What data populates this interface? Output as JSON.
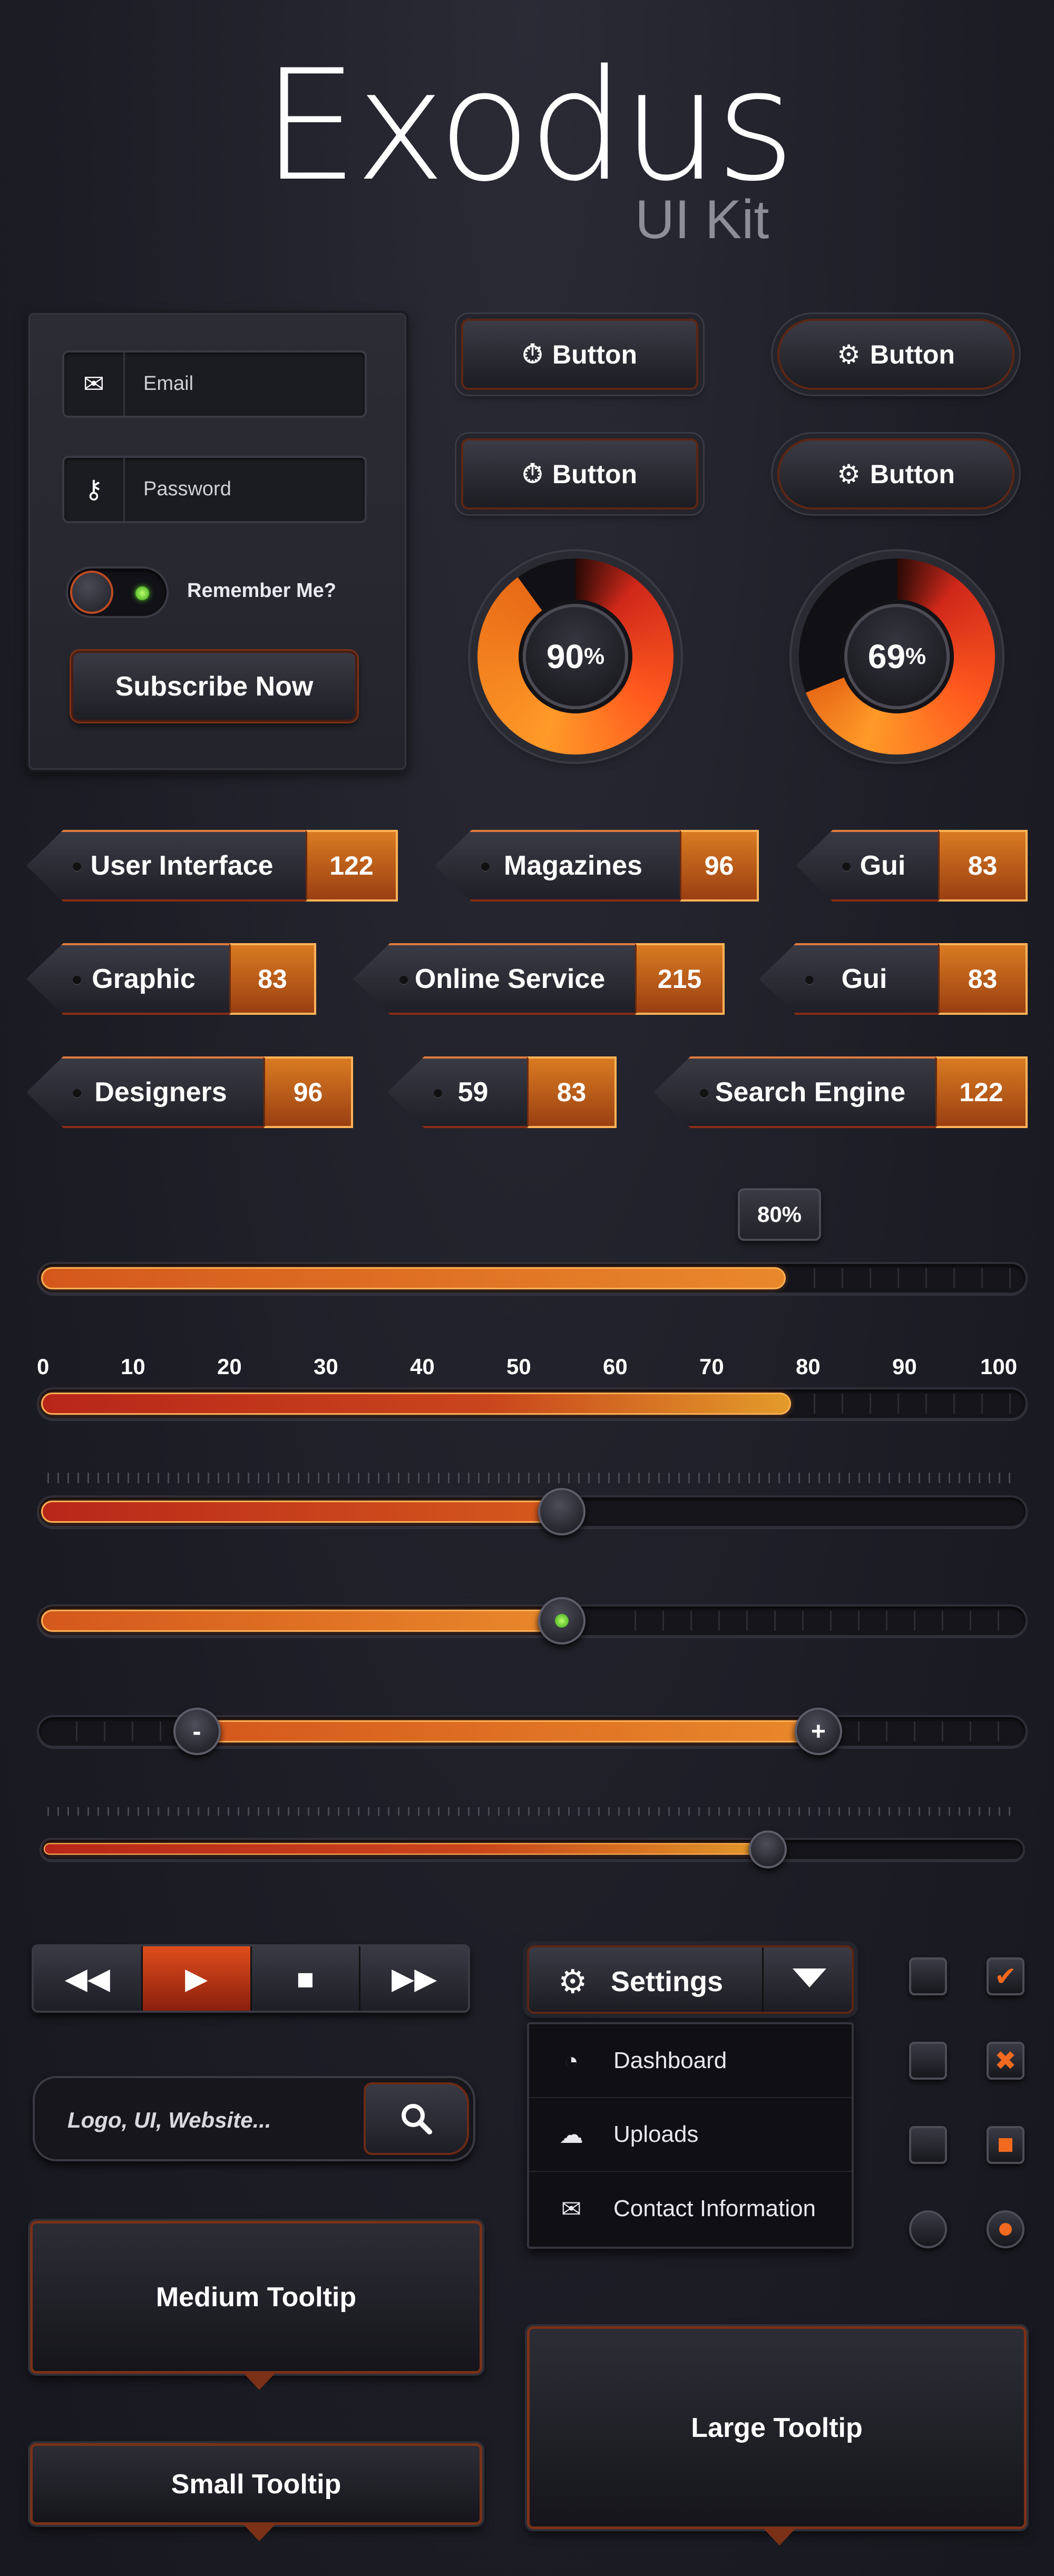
{
  "header": {
    "title": "Exodus",
    "subtitle": "UI Kit"
  },
  "login": {
    "email_placeholder": "Email",
    "password_placeholder": "Password",
    "remember_label": "Remember Me?",
    "subscribe_label": "Subscribe Now"
  },
  "buttons": {
    "label": "Button"
  },
  "gauges": [
    {
      "value": "90",
      "unit": "%",
      "percent": 90
    },
    {
      "value": "69",
      "unit": "%",
      "percent": 69
    }
  ],
  "tags": [
    {
      "label": "User Interface",
      "count": "122"
    },
    {
      "label": "Magazines",
      "count": "96"
    },
    {
      "label": "Gui",
      "count": "83"
    },
    {
      "label": "Graphic",
      "count": "83"
    },
    {
      "label": "Online Service",
      "count": "215"
    },
    {
      "label": "Gui",
      "count": "83"
    },
    {
      "label": "Designers",
      "count": "96"
    },
    {
      "label": "59",
      "count": "83"
    },
    {
      "label": "Search Engine",
      "count": "122"
    }
  ],
  "sliders": {
    "progress_value": "80%",
    "progress_percent": 80,
    "scale": [
      "0",
      "10",
      "20",
      "30",
      "40",
      "50",
      "60",
      "70",
      "80",
      "90",
      "100"
    ],
    "scaled_percent": 76,
    "slider3_percent": 53,
    "slider4_percent": 53,
    "range_min_percent": 16,
    "range_max_percent": 79,
    "slider6_percent": 74,
    "minus": "-",
    "plus": "+"
  },
  "search": {
    "placeholder": "Logo, UI, Website..."
  },
  "dropdown": {
    "label": "Settings",
    "items": [
      "Dashboard",
      "Uploads",
      "Contact Information"
    ]
  },
  "tooltips": {
    "medium": "Medium Tooltip",
    "small": "Small Tooltip",
    "large": "Large Tooltip"
  },
  "colors": {
    "accent": "#d2561d",
    "accent_light": "#f0a640",
    "red": "#c0281c",
    "bg": "#1e1e27",
    "led_green": "#5ad12a"
  }
}
